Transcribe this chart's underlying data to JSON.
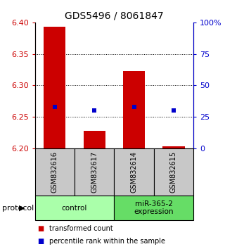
{
  "title": "GDS5496 / 8061847",
  "samples": [
    "GSM832616",
    "GSM832617",
    "GSM832614",
    "GSM832615"
  ],
  "groups": [
    {
      "name": "control",
      "color": "#aaffaa"
    },
    {
      "name": "miR-365-2\nexpression",
      "color": "#66dd66"
    }
  ],
  "ylim_left": [
    6.2,
    6.4
  ],
  "ylim_right": [
    0,
    100
  ],
  "yticks_left": [
    6.2,
    6.25,
    6.3,
    6.35,
    6.4
  ],
  "yticks_right": [
    0,
    25,
    50,
    75,
    100
  ],
  "ytick_labels_right": [
    "0",
    "25",
    "50",
    "75",
    "100%"
  ],
  "grid_lines": [
    6.25,
    6.3,
    6.35
  ],
  "bar_bottom": 6.2,
  "bar_tops": [
    6.393,
    6.228,
    6.323,
    6.203
  ],
  "blue_values_pct": [
    33,
    30,
    33,
    30
  ],
  "bar_color": "#cc0000",
  "blue_color": "#0000cc",
  "bar_width": 0.55,
  "label_transformed": "transformed count",
  "label_percentile": "percentile rank within the sample",
  "left_label_color": "#cc0000",
  "right_label_color": "#0000cc",
  "background_color": "#ffffff",
  "sample_box_color": "#c8c8c8"
}
